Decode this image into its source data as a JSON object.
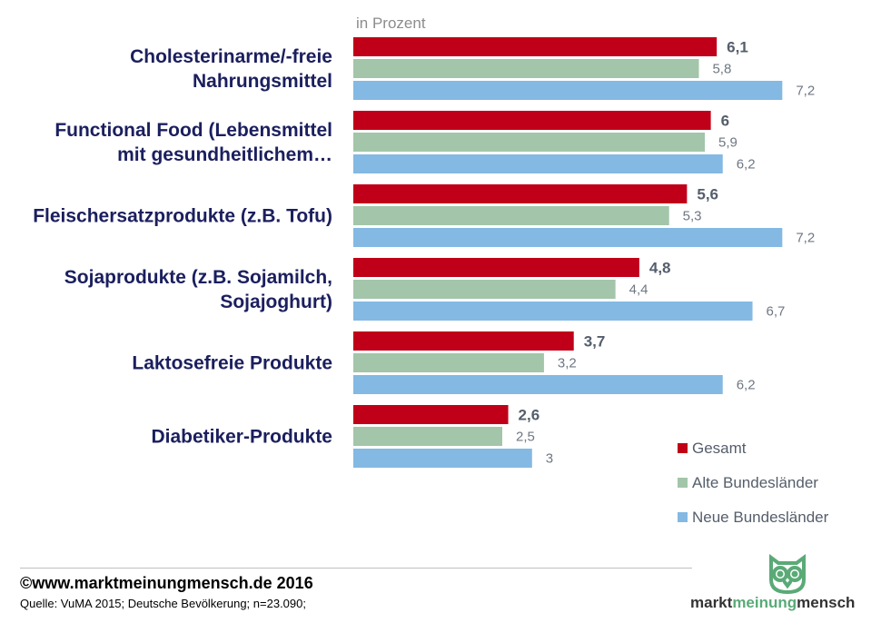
{
  "colors": {
    "gesamt": "#c00018",
    "alte": "#a3c5a9",
    "neue": "#83b9e3",
    "category_text": "#1b1f5e",
    "logo_green": "#5aaa77"
  },
  "chart_data": {
    "type": "bar",
    "orientation": "horizontal",
    "unit_label": "in Prozent",
    "categories": [
      [
        "Cholesterinarme/-freie",
        "Nahrungsmittel"
      ],
      [
        "Functional Food (Lebensmittel",
        "mit gesundheitlichem…"
      ],
      [
        "Fleischersatzprodukte (z.B. Tofu)"
      ],
      [
        "Sojaprodukte (z.B. Sojamilch,",
        "Sojajoghurt)"
      ],
      [
        "Laktosefreie Produkte"
      ],
      [
        "Diabetiker-Produkte"
      ]
    ],
    "series": [
      {
        "name": "Gesamt",
        "color": "#c00018",
        "labels": [
          "6,1",
          "6",
          "5,6",
          "4,8",
          "3,7",
          "2,6"
        ],
        "values": [
          6.1,
          6.0,
          5.6,
          4.8,
          3.7,
          2.6
        ]
      },
      {
        "name": "Alte Bundesländer",
        "color": "#a3c5a9",
        "labels": [
          "5,8",
          "5,9",
          "5,3",
          "4,4",
          "3,2",
          "2,5"
        ],
        "values": [
          5.8,
          5.9,
          5.3,
          4.4,
          3.2,
          2.5
        ]
      },
      {
        "name": "Neue Bundesländer",
        "color": "#83b9e3",
        "labels": [
          "7,2",
          "6,2",
          "7,2",
          "6,7",
          "6,2",
          "3"
        ],
        "values": [
          7.2,
          6.2,
          7.2,
          6.7,
          6.2,
          3.0
        ]
      }
    ],
    "xlim": [
      0,
      7.2
    ],
    "legend_position": "bottom-right",
    "grid": false
  },
  "footer": {
    "copyright": "©www.marktmeinungmensch.de 2016",
    "source": "Quelle: VuMA 2015; Deutsche Bevölkerung; n=23.090;"
  },
  "logo": {
    "word1": "markt",
    "word2": "meinung",
    "word3": "mensch",
    "icon": "owl-icon"
  }
}
